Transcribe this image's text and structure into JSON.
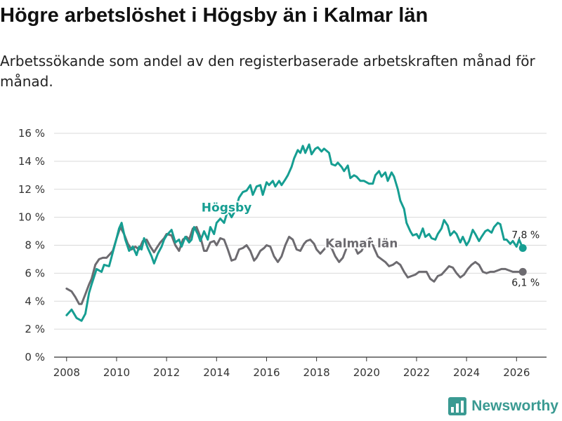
{
  "title": "Högre arbetslöshet i Högsby än i Kalmar län",
  "subtitle": "Arbetssökande som andel av den registerbaserade arbetskraften månad för månad.",
  "brand": {
    "name": "Newsworthy",
    "icon": "bar-chart-logo-icon",
    "color": "#3a9a92"
  },
  "colors": {
    "hogsby": "#169e92",
    "kalmar": "#6d6b70",
    "grid": "#d9d9d9",
    "axis": "#333333"
  },
  "chart_data": {
    "type": "line",
    "title": "Högre arbetslöshet i Högsby än i Kalmar län",
    "xlabel": "",
    "ylabel": "",
    "xlim": [
      2007.5,
      2027.2
    ],
    "ylim": [
      0,
      16
    ],
    "grid": true,
    "x_ticks": [
      2008,
      2010,
      2012,
      2014,
      2016,
      2018,
      2020,
      2022,
      2024,
      2026
    ],
    "x_tick_labels": [
      "2008",
      "2010",
      "2012",
      "2014",
      "2016",
      "2018",
      "2020",
      "2022",
      "2024",
      "2026"
    ],
    "y_ticks": [
      0,
      2,
      4,
      6,
      8,
      10,
      12,
      14,
      16
    ],
    "y_tick_labels": [
      "0 %",
      "2 %",
      "4 %",
      "6 %",
      "8 %",
      "10 %",
      "12 %",
      "14 %",
      "16 %"
    ],
    "series": [
      {
        "name": "Högsby",
        "label": "Högsby",
        "end_label": "7,8 %",
        "label_at": [
          2014.4,
          10.4
        ],
        "x": [
          2008.0,
          2008.2,
          2008.4,
          2008.6,
          2008.75,
          2008.9,
          2009.0,
          2009.2,
          2009.4,
          2009.5,
          2009.7,
          2009.85,
          2010.0,
          2010.1,
          2010.2,
          2010.35,
          2010.5,
          2010.65,
          2010.8,
          2010.9,
          2011.0,
          2011.1,
          2011.25,
          2011.4,
          2011.5,
          2011.65,
          2011.8,
          2011.9,
          2012.0,
          2012.2,
          2012.35,
          2012.5,
          2012.6,
          2012.75,
          2012.9,
          2013.0,
          2013.1,
          2013.25,
          2013.35,
          2013.5,
          2013.65,
          2013.75,
          2013.9,
          2014.0,
          2014.15,
          2014.3,
          2014.45,
          2014.6,
          2014.75,
          2014.9,
          2015.05,
          2015.2,
          2015.35,
          2015.45,
          2015.6,
          2015.75,
          2015.85,
          2016.0,
          2016.1,
          2016.25,
          2016.35,
          2016.5,
          2016.6,
          2016.75,
          2016.85,
          2017.0,
          2017.1,
          2017.25,
          2017.35,
          2017.45,
          2017.55,
          2017.7,
          2017.8,
          2017.95,
          2018.05,
          2018.2,
          2018.3,
          2018.5,
          2018.6,
          2018.75,
          2018.85,
          2019.0,
          2019.1,
          2019.25,
          2019.35,
          2019.5,
          2019.6,
          2019.75,
          2019.9,
          2020.0,
          2020.1,
          2020.25,
          2020.35,
          2020.5,
          2020.6,
          2020.75,
          2020.85,
          2021.0,
          2021.1,
          2021.25,
          2021.35,
          2021.5,
          2021.6,
          2021.75,
          2021.85,
          2022.0,
          2022.1,
          2022.25,
          2022.35,
          2022.5,
          2022.6,
          2022.75,
          2022.85,
          2023.0,
          2023.1,
          2023.25,
          2023.35,
          2023.5,
          2023.6,
          2023.75,
          2023.85,
          2024.0,
          2024.1,
          2024.25,
          2024.35,
          2024.5,
          2024.6,
          2024.75,
          2024.85,
          2025.0,
          2025.1,
          2025.25,
          2025.35,
          2025.5,
          2025.6,
          2025.75,
          2025.85,
          2026.0,
          2026.1,
          2026.25
        ],
        "values": [
          3.0,
          3.4,
          2.8,
          2.6,
          3.1,
          4.6,
          5.2,
          6.3,
          6.1,
          6.6,
          6.5,
          7.5,
          8.5,
          9.2,
          9.6,
          8.4,
          7.6,
          7.9,
          7.3,
          7.9,
          7.7,
          8.5,
          7.8,
          7.2,
          6.7,
          7.4,
          7.9,
          8.4,
          8.7,
          9.1,
          8.2,
          8.4,
          7.9,
          8.6,
          8.2,
          8.4,
          9.3,
          8.8,
          8.3,
          9.0,
          8.4,
          9.3,
          8.8,
          9.6,
          9.9,
          9.6,
          10.5,
          10.0,
          10.5,
          11.4,
          11.8,
          11.9,
          12.3,
          11.6,
          12.2,
          12.3,
          11.6,
          12.5,
          12.3,
          12.6,
          12.2,
          12.6,
          12.3,
          12.7,
          13.0,
          13.6,
          14.2,
          14.8,
          14.6,
          15.1,
          14.6,
          15.2,
          14.5,
          14.9,
          15.0,
          14.7,
          14.9,
          14.6,
          13.8,
          13.7,
          13.9,
          13.6,
          13.3,
          13.7,
          12.8,
          13.0,
          12.9,
          12.6,
          12.6,
          12.5,
          12.4,
          12.4,
          13.0,
          13.3,
          12.9,
          13.2,
          12.6,
          13.2,
          12.9,
          12.0,
          11.2,
          10.6,
          9.6,
          9.0,
          8.7,
          8.8,
          8.5,
          9.2,
          8.6,
          8.8,
          8.5,
          8.4,
          8.8,
          9.2,
          9.8,
          9.4,
          8.7,
          9.0,
          8.8,
          8.2,
          8.6,
          8.0,
          8.3,
          9.1,
          8.8,
          8.3,
          8.6,
          9.0,
          9.1,
          8.9,
          9.3,
          9.6,
          9.5,
          8.4,
          8.4,
          8.1,
          8.3,
          7.9,
          8.4,
          7.8
        ]
      },
      {
        "name": "Kalmar län",
        "label": "Kalmar län",
        "end_label": "6,1 %",
        "label_at": [
          2019.8,
          7.85
        ],
        "x": [
          2008.0,
          2008.2,
          2008.35,
          2008.5,
          2008.6,
          2008.75,
          2008.9,
          2009.0,
          2009.15,
          2009.3,
          2009.45,
          2009.6,
          2009.75,
          2009.85,
          2010.0,
          2010.15,
          2010.3,
          2010.45,
          2010.6,
          2010.75,
          2010.9,
          2011.05,
          2011.2,
          2011.35,
          2011.5,
          2011.6,
          2011.75,
          2011.9,
          2012.0,
          2012.2,
          2012.35,
          2012.5,
          2012.65,
          2012.8,
          2012.9,
          2013.05,
          2013.2,
          2013.35,
          2013.5,
          2013.6,
          2013.75,
          2013.9,
          2014.0,
          2014.15,
          2014.3,
          2014.45,
          2014.6,
          2014.75,
          2014.9,
          2015.05,
          2015.2,
          2015.35,
          2015.5,
          2015.6,
          2015.75,
          2015.9,
          2016.0,
          2016.15,
          2016.3,
          2016.45,
          2016.6,
          2016.75,
          2016.9,
          2017.05,
          2017.2,
          2017.35,
          2017.5,
          2017.6,
          2017.75,
          2017.9,
          2018.0,
          2018.15,
          2018.3,
          2018.45,
          2018.6,
          2018.75,
          2018.9,
          2019.05,
          2019.2,
          2019.35,
          2019.5,
          2019.65,
          2019.8,
          2020.0,
          2020.15,
          2020.3,
          2020.45,
          2020.6,
          2020.75,
          2020.9,
          2021.05,
          2021.2,
          2021.35,
          2021.5,
          2021.65,
          2021.8,
          2021.95,
          2022.1,
          2022.25,
          2022.4,
          2022.55,
          2022.7,
          2022.85,
          2023.0,
          2023.15,
          2023.3,
          2023.45,
          2023.6,
          2023.75,
          2023.9,
          2024.05,
          2024.2,
          2024.35,
          2024.5,
          2024.65,
          2024.8,
          2024.95,
          2025.1,
          2025.25,
          2025.4,
          2025.55,
          2025.7,
          2025.85,
          2026.0,
          2026.25
        ],
        "values": [
          4.9,
          4.7,
          4.3,
          3.8,
          3.8,
          4.5,
          5.2,
          5.6,
          6.6,
          7.0,
          7.1,
          7.1,
          7.4,
          7.6,
          8.5,
          9.3,
          8.8,
          8.1,
          7.7,
          7.9,
          7.7,
          8.3,
          8.4,
          7.9,
          7.5,
          7.8,
          8.2,
          8.5,
          8.8,
          8.7,
          8.0,
          7.6,
          8.4,
          8.6,
          8.4,
          9.2,
          9.3,
          8.6,
          7.6,
          7.6,
          8.2,
          8.3,
          8.0,
          8.5,
          8.4,
          7.7,
          6.9,
          7.0,
          7.7,
          7.8,
          8.0,
          7.6,
          6.9,
          7.1,
          7.6,
          7.8,
          8.0,
          7.9,
          7.2,
          6.8,
          7.2,
          8.0,
          8.6,
          8.4,
          7.7,
          7.6,
          8.1,
          8.3,
          8.4,
          8.1,
          7.7,
          7.4,
          7.7,
          8.0,
          7.8,
          7.2,
          6.8,
          7.1,
          7.8,
          8.2,
          8.0,
          7.4,
          7.6,
          8.3,
          8.5,
          7.8,
          7.2,
          7.0,
          6.8,
          6.5,
          6.6,
          6.8,
          6.6,
          6.1,
          5.7,
          5.8,
          5.9,
          6.1,
          6.1,
          6.1,
          5.6,
          5.4,
          5.8,
          5.9,
          6.2,
          6.5,
          6.4,
          6.0,
          5.7,
          5.9,
          6.3,
          6.6,
          6.8,
          6.6,
          6.1,
          6.0,
          6.1,
          6.1,
          6.2,
          6.3,
          6.3,
          6.2,
          6.1,
          6.1,
          6.1
        ]
      }
    ]
  }
}
